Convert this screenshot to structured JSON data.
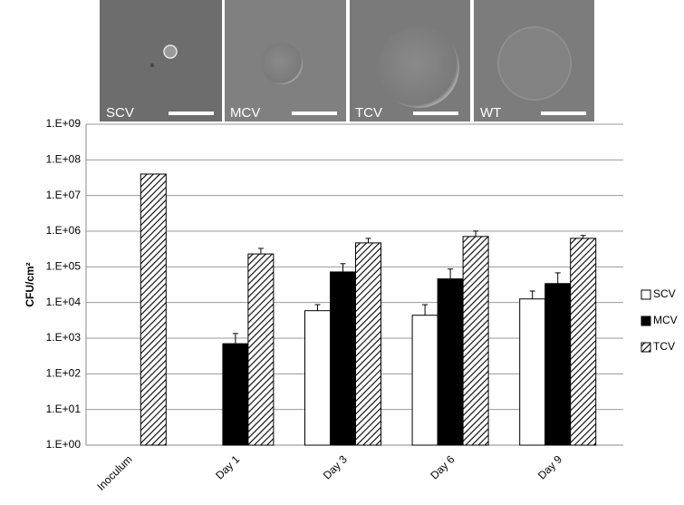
{
  "images": [
    {
      "label": "SCV"
    },
    {
      "label": "MCV"
    },
    {
      "label": "TCV"
    },
    {
      "label": "WT"
    }
  ],
  "chart_data": {
    "type": "bar",
    "y_label": "CFU/cm²",
    "log_scale": true,
    "grid": true,
    "categories": [
      "Inoculum",
      "Day 1",
      "Day 3",
      "Day 6",
      "Day 9"
    ],
    "series": [
      {
        "name": "SCV",
        "color": "#ffffff",
        "hatched": false,
        "values": [
          null,
          null,
          5900,
          4400,
          12600
        ],
        "errors": [
          null,
          null,
          2800,
          4300,
          8400
        ]
      },
      {
        "name": "MCV",
        "color": "#000000",
        "hatched": false,
        "values": [
          null,
          700,
          72000,
          46000,
          34000
        ],
        "errors": [
          null,
          650,
          51000,
          41000,
          34000
        ]
      },
      {
        "name": "TCV",
        "color": "#ffffff",
        "hatched": true,
        "values": [
          40000000,
          230000,
          470000,
          710000,
          630000
        ],
        "errors": [
          null,
          100000,
          160000,
          300000,
          130000
        ]
      }
    ],
    "ylim": [
      1,
      1000000000
    ],
    "yticks": [
      {
        "value": 1,
        "label": "1.E+00"
      },
      {
        "value": 10,
        "label": "1.E+01"
      },
      {
        "value": 100,
        "label": "1.E+02"
      },
      {
        "value": 1000,
        "label": "1.E+03"
      },
      {
        "value": 10000,
        "label": "1.E+04"
      },
      {
        "value": 100000,
        "label": "1.E+05"
      },
      {
        "value": 1000000,
        "label": "1.E+06"
      },
      {
        "value": 10000000,
        "label": "1.E+07"
      },
      {
        "value": 100000000,
        "label": "1.E+08"
      },
      {
        "value": 1000000000,
        "label": "1.E+09"
      }
    ]
  }
}
